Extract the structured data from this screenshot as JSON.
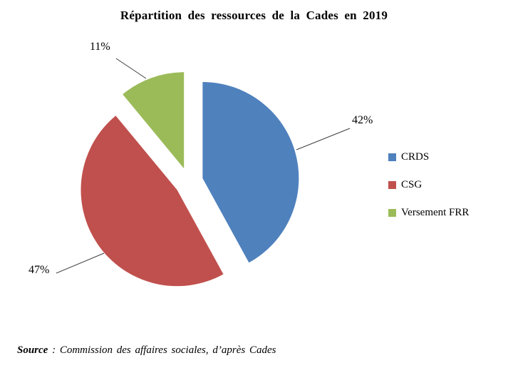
{
  "source": {
    "prefix": "Source",
    "separator": " : ",
    "text": "Commission des affaires sociales, d’après Cades"
  },
  "chart_data": {
    "type": "pie",
    "title": "Répartition des ressources de la Cades en 2019",
    "labels": [
      "CRDS",
      "CSG",
      "Versement FRR"
    ],
    "values": [
      42,
      47,
      11
    ],
    "unit": "%",
    "data_labels": [
      "42%",
      "47%",
      "11%"
    ],
    "colors": [
      "#4F81BD",
      "#C0504D",
      "#9BBB59"
    ],
    "start_angle_deg": 0,
    "direction": "clockwise",
    "exploded": true,
    "legend_position": "right",
    "legend_items": [
      "CRDS",
      "CSG",
      "Versement FRR"
    ]
  }
}
